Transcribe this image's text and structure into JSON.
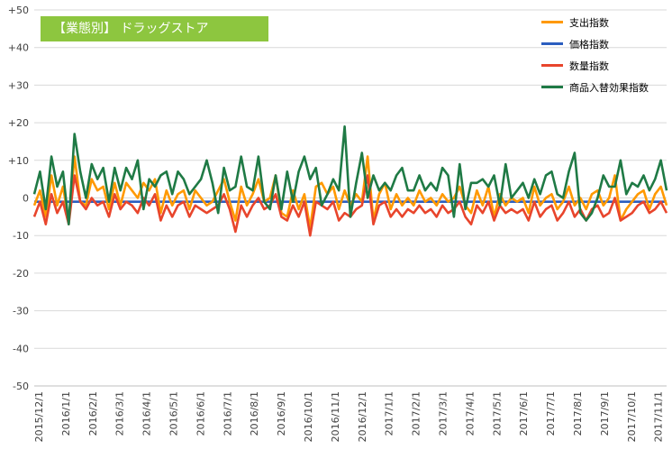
{
  "chart_data": {
    "type": "line",
    "title": "【業態別】 ドラッグストア",
    "ylim": [
      -50,
      50
    ],
    "yticks": [
      "+50",
      "+40",
      "+30",
      "+20",
      "+10",
      "0",
      "-10",
      "-20",
      "-30",
      "-40",
      "-50"
    ],
    "ytick_values": [
      50,
      40,
      30,
      20,
      10,
      0,
      -10,
      -20,
      -30,
      -40,
      -50
    ],
    "xtick_labels": [
      "2015/12/1",
      "2016/1/1",
      "2016/2/1",
      "2016/3/1",
      "2016/4/1",
      "2016/5/1",
      "2016/6/1",
      "2016/7/1",
      "2016/8/1",
      "2016/9/1",
      "2016/10/1",
      "2016/11/1",
      "2016/12/1",
      "2017/1/1",
      "2017/2/1",
      "2017/3/1",
      "2017/4/1",
      "2017/5/1",
      "2017/6/1",
      "2017/7/1",
      "2017/8/1",
      "2017/9/1",
      "2017/10/1",
      "2017/11/1"
    ],
    "grid": true,
    "legend_position": "top-right",
    "series": [
      {
        "name": "支出指数",
        "color": "#ff9900",
        "values": [
          -2,
          2,
          -5,
          6,
          -2,
          3,
          -6,
          11,
          -1,
          -2,
          5,
          2,
          3,
          -3,
          4,
          -2,
          4,
          2,
          0,
          4,
          2,
          5,
          -4,
          2,
          -2,
          1,
          2,
          -3,
          2,
          0,
          -2,
          -1,
          2,
          5,
          -1,
          -6,
          3,
          -2,
          1,
          5,
          -1,
          0,
          6,
          -4,
          -5,
          2,
          -3,
          1,
          -8,
          3,
          4,
          1,
          3,
          -3,
          2,
          -2,
          1,
          -1,
          11,
          -6,
          1,
          4,
          -3,
          1,
          -2,
          0,
          -2,
          2,
          -1,
          0,
          -2,
          1,
          -1,
          0,
          3,
          -2,
          -4,
          2,
          -2,
          3,
          -5,
          1,
          -2,
          0,
          -1,
          0,
          -4,
          3,
          -2,
          0,
          1,
          -3,
          -1,
          3,
          -2,
          0,
          -3,
          1,
          2,
          -2,
          0,
          6,
          -6,
          -3,
          -1,
          1,
          2,
          -3,
          1,
          3,
          -2
        ]
      },
      {
        "name": "価格指数",
        "color": "#2b5ebf",
        "values": [
          -1,
          -1,
          -1,
          -1,
          -1,
          -1,
          -1,
          -1,
          -1,
          -1,
          -1,
          -1,
          -1,
          -1,
          -1,
          -1,
          -1,
          -1,
          -1,
          -1,
          -1,
          -1,
          -1,
          -1,
          -1,
          -1,
          -1,
          -1,
          -1,
          -1,
          -1,
          -1,
          -1,
          -1,
          -1,
          -1,
          -1,
          -1,
          -1,
          -1,
          -1,
          -1,
          -1,
          -1,
          -1,
          -1,
          -1,
          -1,
          -1,
          -1,
          -1,
          -1,
          -1,
          -1,
          -1,
          -1,
          -1,
          -1,
          -1,
          -1,
          -1,
          -1,
          -1,
          -1,
          -1,
          -1,
          -1,
          -1,
          -1,
          -1,
          -1,
          -1,
          -1,
          -1,
          -1,
          -1,
          -1,
          -1,
          -1,
          -1,
          -1,
          -1,
          -1,
          -1,
          -1,
          -1,
          -1,
          -1,
          -1,
          -1,
          -1,
          -1,
          -1,
          -1,
          -1,
          -1,
          -1,
          -1,
          -1,
          -1,
          -1,
          -1,
          -1,
          -1,
          -1,
          -1,
          -1,
          -1,
          -1,
          -1,
          -1
        ]
      },
      {
        "name": "数量指数",
        "color": "#e8452c",
        "values": [
          -5,
          -1,
          -7,
          1,
          -4,
          -1,
          -7,
          6,
          -1,
          -3,
          0,
          -2,
          -1,
          -5,
          1,
          -3,
          -1,
          -2,
          -4,
          0,
          -2,
          1,
          -6,
          -2,
          -5,
          -2,
          -1,
          -5,
          -2,
          -3,
          -4,
          -3,
          -2,
          1,
          -3,
          -9,
          -2,
          -5,
          -2,
          0,
          -3,
          -2,
          1,
          -5,
          -6,
          -2,
          -5,
          -1,
          -10,
          -1,
          -2,
          -3,
          -1,
          -6,
          -4,
          -5,
          -3,
          -2,
          6,
          -7,
          -2,
          -1,
          -5,
          -3,
          -5,
          -3,
          -4,
          -2,
          -4,
          -3,
          -5,
          -2,
          -4,
          -3,
          -1,
          -5,
          -7,
          -2,
          -4,
          -1,
          -6,
          -2,
          -4,
          -3,
          -4,
          -3,
          -6,
          -1,
          -5,
          -3,
          -2,
          -6,
          -4,
          -1,
          -5,
          -3,
          -6,
          -3,
          -2,
          -5,
          -4,
          0,
          -6,
          -5,
          -4,
          -2,
          -1,
          -4,
          -3,
          -1,
          -4
        ]
      },
      {
        "name": "商品入替効果指数",
        "color": "#1f7a45",
        "values": [
          1,
          7,
          -3,
          11,
          3,
          7,
          -7,
          17,
          7,
          0,
          9,
          5,
          8,
          -1,
          8,
          2,
          8,
          5,
          10,
          -3,
          5,
          3,
          6,
          7,
          1,
          7,
          5,
          1,
          3,
          5,
          10,
          4,
          -4,
          8,
          2,
          3,
          11,
          3,
          2,
          11,
          -1,
          -3,
          6,
          -3,
          7,
          -1,
          7,
          11,
          5,
          8,
          -2,
          1,
          5,
          2,
          19,
          -5,
          4,
          12,
          0,
          6,
          2,
          4,
          2,
          6,
          8,
          2,
          2,
          6,
          2,
          4,
          2,
          8,
          6,
          -5,
          9,
          -3,
          4,
          4,
          5,
          3,
          6,
          -2,
          9,
          0,
          2,
          4,
          0,
          5,
          1,
          6,
          7,
          1,
          0,
          7,
          12,
          -4,
          -6,
          -4,
          0,
          6,
          3,
          3,
          10,
          1,
          4,
          3,
          6,
          2,
          5,
          10,
          2
        ]
      }
    ]
  }
}
